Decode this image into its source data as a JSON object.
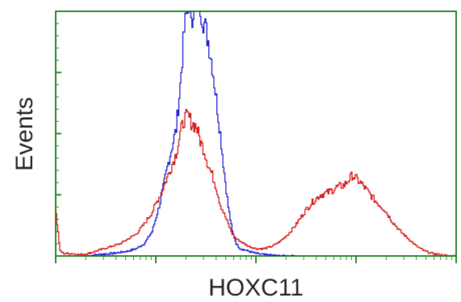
{
  "chart_data": {
    "type": "line",
    "xlabel": "HOXC11",
    "ylabel": "Events",
    "x_scale": "log",
    "xlim": [
      0,
      100
    ],
    "ylim": [
      0,
      100
    ],
    "grid": false,
    "legend": "none",
    "axis_color": "#2e8b2e",
    "series": [
      {
        "color": "#2020d0",
        "x": [
          8,
          10,
          12,
          14,
          16,
          18,
          20,
          22,
          24,
          26,
          28,
          30,
          31,
          32,
          33,
          34,
          35,
          36,
          37,
          38,
          39,
          40,
          41,
          42,
          43,
          44,
          45,
          46,
          48,
          50,
          52,
          54,
          56,
          58,
          60
        ],
        "y": [
          0,
          0.5,
          0.8,
          1,
          1.5,
          2,
          3,
          5,
          10,
          22,
          38,
          52,
          70,
          92,
          104,
          99,
          106,
          102,
          95,
          88,
          78,
          64,
          50,
          34,
          20,
          10,
          5,
          3,
          2,
          1,
          0.5,
          0.3,
          0,
          0,
          0
        ]
      },
      {
        "color": "#d42020",
        "x": [
          0,
          1,
          2,
          4,
          6,
          8,
          10,
          12,
          14,
          16,
          18,
          20,
          22,
          24,
          26,
          28,
          30,
          31,
          32,
          33,
          34,
          35,
          36,
          37,
          38,
          39,
          40,
          41,
          42,
          43,
          44,
          45,
          46,
          48,
          50,
          52,
          54,
          56,
          58,
          60,
          62,
          64,
          66,
          68,
          70,
          72,
          74,
          76,
          78,
          80,
          82,
          84,
          86,
          88,
          90,
          92,
          94,
          96,
          98,
          100
        ],
        "y": [
          17,
          2,
          1,
          1,
          0.5,
          1,
          2,
          3,
          4,
          5,
          7,
          9,
          13,
          18,
          25,
          33,
          42,
          50,
          56,
          57,
          54,
          53,
          47,
          43,
          37,
          33,
          28,
          21,
          17,
          13,
          9,
          7,
          6,
          4,
          3,
          3,
          4,
          6,
          9,
          13,
          18,
          22,
          25,
          26,
          28,
          29,
          33,
          30,
          26,
          22,
          19,
          14,
          10,
          7,
          4,
          2,
          1,
          0.5,
          0,
          0
        ]
      }
    ]
  }
}
